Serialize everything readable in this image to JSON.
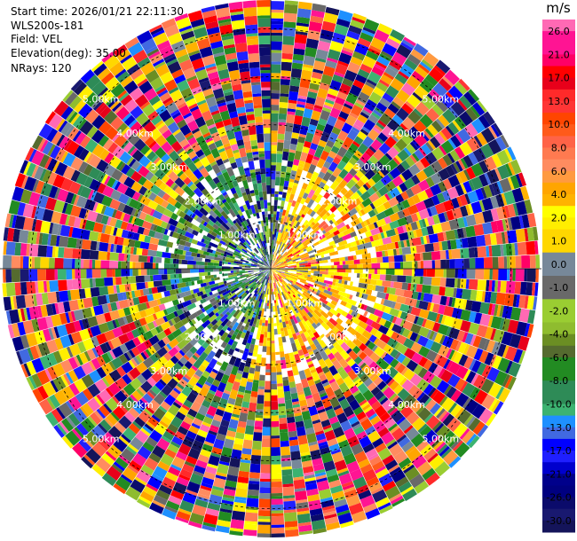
{
  "header": {
    "start_time": "Start time: 2026/01/21 22:11:30",
    "instrument": "WLS200s-181",
    "field": "Field: VEL",
    "elevation": "Elevation(deg): 35.00",
    "nrays": "NRays: 120"
  },
  "chart_data": {
    "type": "heatmap",
    "subtype": "polar-ppi",
    "field": "VEL",
    "n_rays": 120,
    "elevation_deg": 35.0,
    "range_rings_km": [
      1,
      2,
      3,
      4,
      5
    ],
    "ring_labels": [
      "1.00km",
      "2.00km",
      "3.00km",
      "4.00km",
      "5.00km"
    ],
    "max_range_km": 5.6,
    "colorbar": {
      "unit": "m/s",
      "ticks": [
        "26.0",
        "21.0",
        "17.0",
        "13.0",
        "10.0",
        "8.0",
        "6.0",
        "4.0",
        "2.0",
        "1.0",
        "0.0",
        "-1.0",
        "-2.0",
        "-4.0",
        "-6.0",
        "-8.0",
        "-10.0",
        "-13.0",
        "-17.0",
        "-21.0",
        "-26.0",
        "-30.0"
      ],
      "bins": [
        {
          "range": [
            26,
            30
          ],
          "colors": [
            "#ff69b4",
            "#ff1493"
          ]
        },
        {
          "range": [
            21,
            26
          ],
          "colors": [
            "#ff1493",
            "#ff0066"
          ]
        },
        {
          "range": [
            17,
            21
          ],
          "colors": [
            "#ff0000",
            "#e8001a"
          ]
        },
        {
          "range": [
            13,
            17
          ],
          "colors": [
            "#ff2a2a",
            "#ff3535"
          ]
        },
        {
          "range": [
            10,
            13
          ],
          "colors": [
            "#ff4500",
            "#ff5a1a"
          ]
        },
        {
          "range": [
            8,
            10
          ],
          "colors": [
            "#ff6347",
            "#ff7a50"
          ]
        },
        {
          "range": [
            6,
            8
          ],
          "colors": [
            "#ff8c60",
            "#ff9a40"
          ]
        },
        {
          "range": [
            4,
            6
          ],
          "colors": [
            "#ffa500",
            "#ffb300"
          ]
        },
        {
          "range": [
            2,
            4
          ],
          "colors": [
            "#ffff00",
            "#ffee00"
          ]
        },
        {
          "range": [
            1,
            2
          ],
          "colors": [
            "#ffd700"
          ]
        },
        {
          "range": [
            0,
            1
          ],
          "colors": [
            "#778899"
          ]
        },
        {
          "range": [
            -1,
            0
          ],
          "colors": [
            "#696969"
          ]
        },
        {
          "range": [
            -2,
            -1
          ],
          "colors": [
            "#9acd32"
          ]
        },
        {
          "range": [
            -4,
            -2
          ],
          "colors": [
            "#8fbc2f",
            "#6b8e23"
          ]
        },
        {
          "range": [
            -6,
            -4
          ],
          "colors": [
            "#556b2f",
            "#228b22"
          ]
        },
        {
          "range": [
            -8,
            -6
          ],
          "colors": [
            "#228b22",
            "#2e8b57"
          ]
        },
        {
          "range": [
            -10,
            -8
          ],
          "colors": [
            "#2e8b57",
            "#3cb371"
          ]
        },
        {
          "range": [
            -13,
            -10
          ],
          "colors": [
            "#1e90ff",
            "#4169e1"
          ]
        },
        {
          "range": [
            -17,
            -13
          ],
          "colors": [
            "#0000ff",
            "#1f1fff"
          ]
        },
        {
          "range": [
            -21,
            -17
          ],
          "colors": [
            "#0000cd",
            "#00008b"
          ]
        },
        {
          "range": [
            -26,
            -21
          ],
          "colors": [
            "#000080",
            "#0b0b6b"
          ]
        },
        {
          "range": [
            -30,
            -26
          ],
          "colors": [
            "#191970",
            "#14145a"
          ]
        }
      ]
    }
  }
}
